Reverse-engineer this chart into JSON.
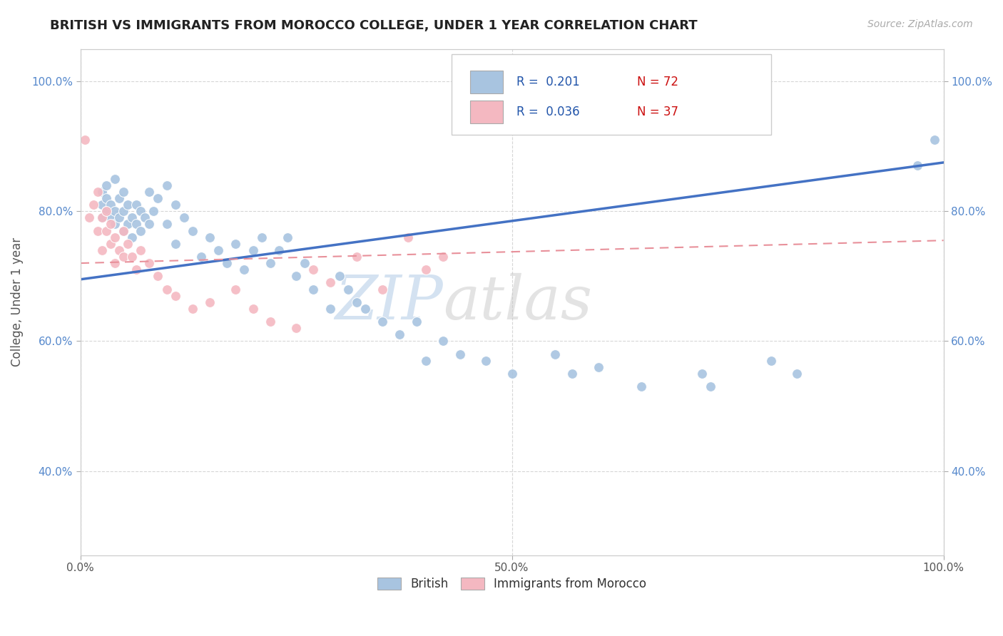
{
  "title": "BRITISH VS IMMIGRANTS FROM MOROCCO COLLEGE, UNDER 1 YEAR CORRELATION CHART",
  "source": "Source: ZipAtlas.com",
  "ylabel": "College, Under 1 year",
  "british_r": "0.201",
  "british_n": "72",
  "morocco_r": "0.036",
  "morocco_n": "37",
  "british_color": "#a8c4e0",
  "british_line_color": "#4472c4",
  "morocco_color": "#f4b8c1",
  "morocco_line_color": "#e8909a",
  "watermark_zip": "ZIP",
  "watermark_atlas": "atlas",
  "brit_x": [
    0.025,
    0.025,
    0.025,
    0.03,
    0.03,
    0.03,
    0.035,
    0.035,
    0.04,
    0.04,
    0.04,
    0.045,
    0.045,
    0.05,
    0.05,
    0.05,
    0.055,
    0.055,
    0.06,
    0.06,
    0.065,
    0.065,
    0.07,
    0.07,
    0.075,
    0.08,
    0.08,
    0.085,
    0.09,
    0.1,
    0.1,
    0.11,
    0.11,
    0.12,
    0.13,
    0.14,
    0.15,
    0.16,
    0.17,
    0.18,
    0.19,
    0.2,
    0.21,
    0.22,
    0.23,
    0.24,
    0.25,
    0.26,
    0.27,
    0.29,
    0.3,
    0.31,
    0.32,
    0.33,
    0.35,
    0.37,
    0.39,
    0.4,
    0.42,
    0.44,
    0.47,
    0.5,
    0.55,
    0.57,
    0.6,
    0.65,
    0.72,
    0.73,
    0.8,
    0.83,
    0.97,
    0.99
  ],
  "brit_y": [
    0.79,
    0.81,
    0.83,
    0.8,
    0.82,
    0.84,
    0.79,
    0.81,
    0.78,
    0.8,
    0.85,
    0.79,
    0.82,
    0.77,
    0.8,
    0.83,
    0.78,
    0.81,
    0.76,
    0.79,
    0.78,
    0.81,
    0.77,
    0.8,
    0.79,
    0.83,
    0.78,
    0.8,
    0.82,
    0.84,
    0.78,
    0.81,
    0.75,
    0.79,
    0.77,
    0.73,
    0.76,
    0.74,
    0.72,
    0.75,
    0.71,
    0.74,
    0.76,
    0.72,
    0.74,
    0.76,
    0.7,
    0.72,
    0.68,
    0.65,
    0.7,
    0.68,
    0.66,
    0.65,
    0.63,
    0.61,
    0.63,
    0.57,
    0.6,
    0.58,
    0.57,
    0.55,
    0.58,
    0.55,
    0.56,
    0.53,
    0.55,
    0.53,
    0.57,
    0.55,
    0.87,
    0.91
  ],
  "mor_x": [
    0.005,
    0.01,
    0.015,
    0.02,
    0.02,
    0.025,
    0.025,
    0.03,
    0.03,
    0.035,
    0.035,
    0.04,
    0.04,
    0.045,
    0.05,
    0.05,
    0.055,
    0.06,
    0.065,
    0.07,
    0.08,
    0.09,
    0.1,
    0.11,
    0.13,
    0.15,
    0.18,
    0.2,
    0.22,
    0.25,
    0.27,
    0.29,
    0.32,
    0.35,
    0.38,
    0.4,
    0.42
  ],
  "mor_y": [
    0.91,
    0.79,
    0.81,
    0.83,
    0.77,
    0.79,
    0.74,
    0.77,
    0.8,
    0.75,
    0.78,
    0.76,
    0.72,
    0.74,
    0.73,
    0.77,
    0.75,
    0.73,
    0.71,
    0.74,
    0.72,
    0.7,
    0.68,
    0.67,
    0.65,
    0.66,
    0.68,
    0.65,
    0.63,
    0.62,
    0.71,
    0.69,
    0.73,
    0.68,
    0.76,
    0.71,
    0.73
  ],
  "brit_line_x0": 0.0,
  "brit_line_x1": 1.0,
  "brit_line_y0": 0.695,
  "brit_line_y1": 0.875,
  "mor_line_x0": 0.0,
  "mor_line_x1": 1.0,
  "mor_line_y0": 0.72,
  "mor_line_y1": 0.755,
  "xlim": [
    0,
    1
  ],
  "ylim": [
    0.27,
    1.05
  ],
  "yticks": [
    0.4,
    0.6,
    0.8,
    1.0
  ],
  "xticks": [
    0.0,
    0.5,
    1.0
  ]
}
